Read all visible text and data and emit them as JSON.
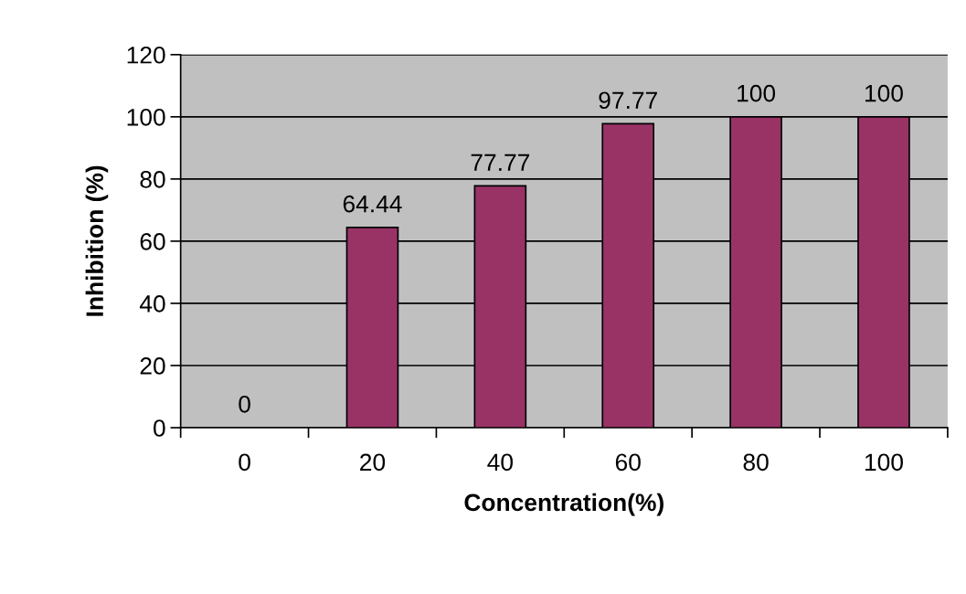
{
  "chart_data": {
    "type": "bar",
    "xlabel": "Concentration(%)",
    "ylabel": "Inhibition (%)",
    "categories": [
      "0",
      "20",
      "40",
      "60",
      "80",
      "100"
    ],
    "values": [
      0,
      64.44,
      77.77,
      97.77,
      100,
      100
    ],
    "color": "#993366",
    "data_labels": true,
    "ylim": [
      0,
      120
    ],
    "yticks": [
      0,
      20,
      40,
      60,
      80,
      100,
      120
    ],
    "grid": "y",
    "legend": false
  }
}
